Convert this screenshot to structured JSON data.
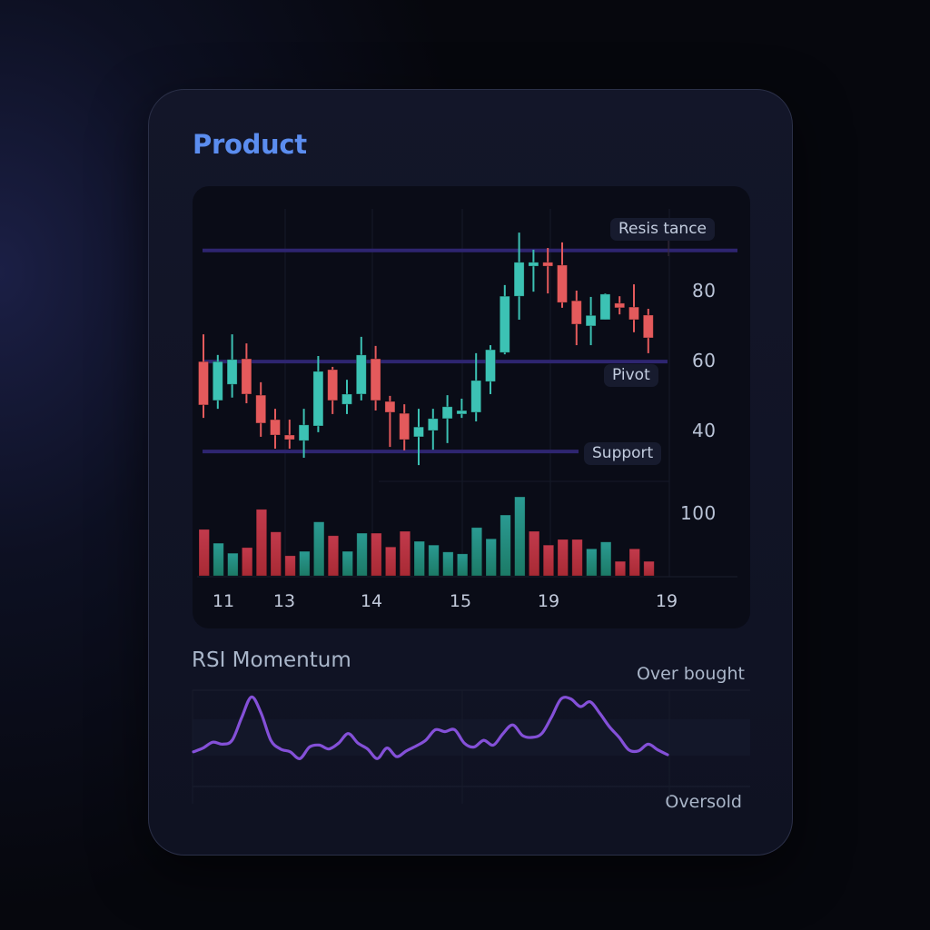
{
  "card": {
    "title": "Product",
    "title_color": "#5b8def"
  },
  "colors": {
    "up": "#3cc2b4",
    "down": "#e45a5c",
    "volume_up": "#22867a",
    "volume_down": "#b8303f",
    "level_line": "#2e2570",
    "rsi_line": "#8450d8"
  },
  "price_chart": {
    "levels": [
      {
        "name": "Resistance",
        "label": "Resis tance",
        "value": 91.5
      },
      {
        "name": "Pivot",
        "label": "Pivot",
        "value": 59.7
      },
      {
        "name": "Support",
        "label": "Support",
        "value": 34.0
      }
    ],
    "y_ticks": [
      "80",
      "60",
      "40"
    ],
    "volume_tick": "100",
    "x_ticks": [
      "11",
      "13",
      "14",
      "15",
      "19",
      "19"
    ]
  },
  "rsi": {
    "title": "RSI Momentum",
    "overbought_label": "Over bought",
    "oversold_label": "Oversold"
  },
  "chart_data": [
    {
      "type": "candlestick",
      "title": "Product",
      "xlabel": "",
      "ylabel": "",
      "ylim": [
        25,
        100
      ],
      "y_ticks": [
        40,
        60,
        80
      ],
      "x_tick_labels": [
        "11",
        "13",
        "14",
        "15",
        "19",
        "19"
      ],
      "grid": true,
      "annotations": [
        {
          "type": "hline",
          "label": "Resis tance",
          "y": 91.5
        },
        {
          "type": "hline",
          "label": "Pivot",
          "y": 59.7
        },
        {
          "type": "hline",
          "label": "Support",
          "y": 34.0
        }
      ],
      "ohlc": [
        {
          "o": 59.7,
          "h": 67.5,
          "l": 43.6,
          "c": 47.3
        },
        {
          "o": 48.6,
          "h": 61.6,
          "l": 46.2,
          "c": 59.7
        },
        {
          "o": 53.2,
          "h": 67.5,
          "l": 49.4,
          "c": 60.3
        },
        {
          "o": 60.5,
          "h": 64.9,
          "l": 47.8,
          "c": 50.4
        },
        {
          "o": 50.1,
          "h": 53.8,
          "l": 38.2,
          "c": 42.1
        },
        {
          "o": 43.1,
          "h": 46.2,
          "l": 34.8,
          "c": 38.7
        },
        {
          "o": 38.7,
          "h": 43.1,
          "l": 34.8,
          "c": 37.4
        },
        {
          "o": 37.1,
          "h": 46.2,
          "l": 32.2,
          "c": 41.6
        },
        {
          "o": 41.3,
          "h": 61.3,
          "l": 39.5,
          "c": 56.9
        },
        {
          "o": 57.4,
          "h": 58.2,
          "l": 44.7,
          "c": 48.6
        },
        {
          "o": 47.5,
          "h": 54.5,
          "l": 44.7,
          "c": 50.4
        },
        {
          "o": 50.4,
          "h": 66.8,
          "l": 48.6,
          "c": 61.6
        },
        {
          "o": 60.5,
          "h": 64.2,
          "l": 45.7,
          "c": 48.6
        },
        {
          "o": 48.3,
          "h": 49.9,
          "l": 35.3,
          "c": 45.2
        },
        {
          "o": 44.9,
          "h": 47.5,
          "l": 34.3,
          "c": 37.4
        },
        {
          "o": 38.2,
          "h": 46.2,
          "l": 30.1,
          "c": 41.0
        },
        {
          "o": 40.0,
          "h": 46.2,
          "l": 34.5,
          "c": 43.4
        },
        {
          "o": 43.4,
          "h": 50.1,
          "l": 36.4,
          "c": 46.8
        },
        {
          "o": 44.7,
          "h": 49.1,
          "l": 43.6,
          "c": 45.7
        },
        {
          "o": 45.2,
          "h": 62.1,
          "l": 42.6,
          "c": 54.3
        },
        {
          "o": 54.0,
          "h": 64.4,
          "l": 50.4,
          "c": 63.1
        },
        {
          "o": 62.3,
          "h": 81.6,
          "l": 61.8,
          "c": 78.4
        },
        {
          "o": 78.4,
          "h": 96.6,
          "l": 71.7,
          "c": 88.1
        },
        {
          "o": 87.0,
          "h": 91.7,
          "l": 79.7,
          "c": 88.1
        },
        {
          "o": 88.1,
          "h": 92.2,
          "l": 79.2,
          "c": 87.0
        },
        {
          "o": 87.3,
          "h": 93.8,
          "l": 75.1,
          "c": 76.6
        },
        {
          "o": 77.1,
          "h": 80.0,
          "l": 64.4,
          "c": 70.4
        },
        {
          "o": 69.9,
          "h": 78.2,
          "l": 64.4,
          "c": 72.9
        },
        {
          "o": 71.7,
          "h": 79.2,
          "l": 71.7,
          "c": 79.0
        },
        {
          "o": 76.4,
          "h": 78.4,
          "l": 73.2,
          "c": 75.1
        },
        {
          "o": 75.3,
          "h": 81.8,
          "l": 68.1,
          "c": 71.7
        },
        {
          "o": 73.0,
          "h": 74.8,
          "l": 62.1,
          "c": 66.5
        }
      ]
    },
    {
      "type": "bar",
      "title": "Volume",
      "y_tick_labels": [
        "100"
      ],
      "ylim": [
        0,
        100
      ],
      "values": [
        74,
        52,
        36,
        45,
        106,
        70,
        32,
        39,
        86,
        64,
        39,
        68,
        68,
        46,
        71,
        55,
        49,
        38,
        35,
        77,
        59,
        97,
        126,
        71,
        49,
        58,
        58,
        43,
        54,
        23,
        43,
        23
      ],
      "colors_by_direction": [
        "down",
        "up",
        "up",
        "down",
        "down",
        "down",
        "down",
        "up",
        "up",
        "down",
        "up",
        "up",
        "down",
        "down",
        "down",
        "up",
        "up",
        "up",
        "up",
        "up",
        "up",
        "up",
        "up",
        "down",
        "down",
        "down",
        "down",
        "up",
        "up",
        "down",
        "down",
        "down"
      ]
    },
    {
      "type": "line",
      "title": "RSI Momentum",
      "ylim": [
        0,
        100
      ],
      "annotations": [
        {
          "label": "Over bought",
          "position": "top-right"
        },
        {
          "label": "Oversold",
          "position": "bottom-right"
        }
      ],
      "values": [
        36,
        40,
        46,
        44,
        48,
        72,
        93,
        76,
        48,
        39,
        36,
        29,
        41,
        43,
        39,
        45,
        55,
        45,
        39,
        29,
        40,
        31,
        37,
        42,
        48,
        59,
        57,
        59,
        45,
        41,
        48,
        43,
        55,
        64,
        53,
        51,
        55,
        72,
        91,
        91,
        83,
        88,
        76,
        62,
        51,
        38,
        37,
        44,
        38,
        33
      ]
    }
  ]
}
